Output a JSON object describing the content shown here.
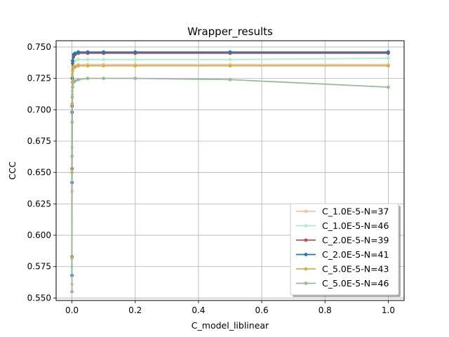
{
  "chart_data": {
    "type": "line",
    "title": "Wrapper_results",
    "xlabel": "C_model_liblinear",
    "ylabel": "CCC",
    "xlim": [
      -0.05,
      1.05
    ],
    "ylim": [
      0.548,
      0.755
    ],
    "xticks": [
      0.0,
      0.2,
      0.4,
      0.6,
      0.8,
      1.0
    ],
    "xtick_labels": [
      "0.0",
      "0.2",
      "0.4",
      "0.6",
      "0.8",
      "1.0"
    ],
    "yticks": [
      0.55,
      0.575,
      0.6,
      0.625,
      0.65,
      0.675,
      0.7,
      0.725,
      0.75
    ],
    "ytick_labels": [
      "0.550",
      "0.575",
      "0.600",
      "0.625",
      "0.650",
      "0.675",
      "0.700",
      "0.725",
      "0.750"
    ],
    "grid": true,
    "legend_position": "lower-right",
    "series": [
      {
        "name": "C_1.0E-5-N=37",
        "color": "#f4c6a0",
        "x": [
          0.0001,
          0.0002,
          0.0005,
          0.001,
          0.002,
          0.005,
          0.01,
          0.02,
          0.05,
          0.1,
          0.2,
          0.5,
          1.0
        ],
        "y": [
          0.561,
          0.635,
          0.69,
          0.712,
          0.727,
          0.733,
          0.735,
          0.736,
          0.736,
          0.736,
          0.736,
          0.736,
          0.736
        ]
      },
      {
        "name": "C_1.0E-5-N=46",
        "color": "#a8f0d0",
        "x": [
          0.0001,
          0.0002,
          0.0005,
          0.001,
          0.002,
          0.005,
          0.01,
          0.02,
          0.05,
          0.1,
          0.2,
          0.5,
          1.0
        ],
        "y": [
          0.575,
          0.67,
          0.715,
          0.728,
          0.735,
          0.738,
          0.739,
          0.74,
          0.74,
          0.74,
          0.74,
          0.74,
          0.741
        ]
      },
      {
        "name": "C_2.0E-5-N=39",
        "color": "#c0504d",
        "x": [
          0.0001,
          0.0002,
          0.0005,
          0.001,
          0.002,
          0.005,
          0.01,
          0.02,
          0.05,
          0.1,
          0.2,
          0.5,
          1.0
        ],
        "y": [
          0.583,
          0.653,
          0.703,
          0.725,
          0.737,
          0.742,
          0.744,
          0.745,
          0.745,
          0.745,
          0.745,
          0.745,
          0.745
        ]
      },
      {
        "name": "C_2.0E-5-N=41",
        "color": "#1f77b4",
        "x": [
          0.0001,
          0.0002,
          0.0005,
          0.001,
          0.002,
          0.005,
          0.01,
          0.02,
          0.05,
          0.1,
          0.2,
          0.5,
          1.0
        ],
        "y": [
          0.568,
          0.642,
          0.698,
          0.725,
          0.739,
          0.744,
          0.745,
          0.746,
          0.746,
          0.746,
          0.746,
          0.746,
          0.746
        ]
      },
      {
        "name": "C_5.0E-5-N=43",
        "color": "#d4b04a",
        "x": [
          0.0001,
          0.0002,
          0.0005,
          0.001,
          0.002,
          0.005,
          0.01,
          0.02,
          0.05,
          0.1,
          0.2,
          0.5,
          1.0
        ],
        "y": [
          0.582,
          0.65,
          0.705,
          0.722,
          0.731,
          0.734,
          0.734,
          0.735,
          0.735,
          0.735,
          0.735,
          0.735,
          0.735
        ]
      },
      {
        "name": "C_5.0E-5-N=46",
        "color": "#9cb89a",
        "x": [
          0.0001,
          0.0002,
          0.0005,
          0.001,
          0.002,
          0.005,
          0.01,
          0.02,
          0.05,
          0.1,
          0.2,
          0.5,
          1.0
        ],
        "y": [
          0.555,
          0.663,
          0.69,
          0.71,
          0.718,
          0.722,
          0.723,
          0.724,
          0.725,
          0.725,
          0.725,
          0.724,
          0.718
        ]
      }
    ]
  }
}
